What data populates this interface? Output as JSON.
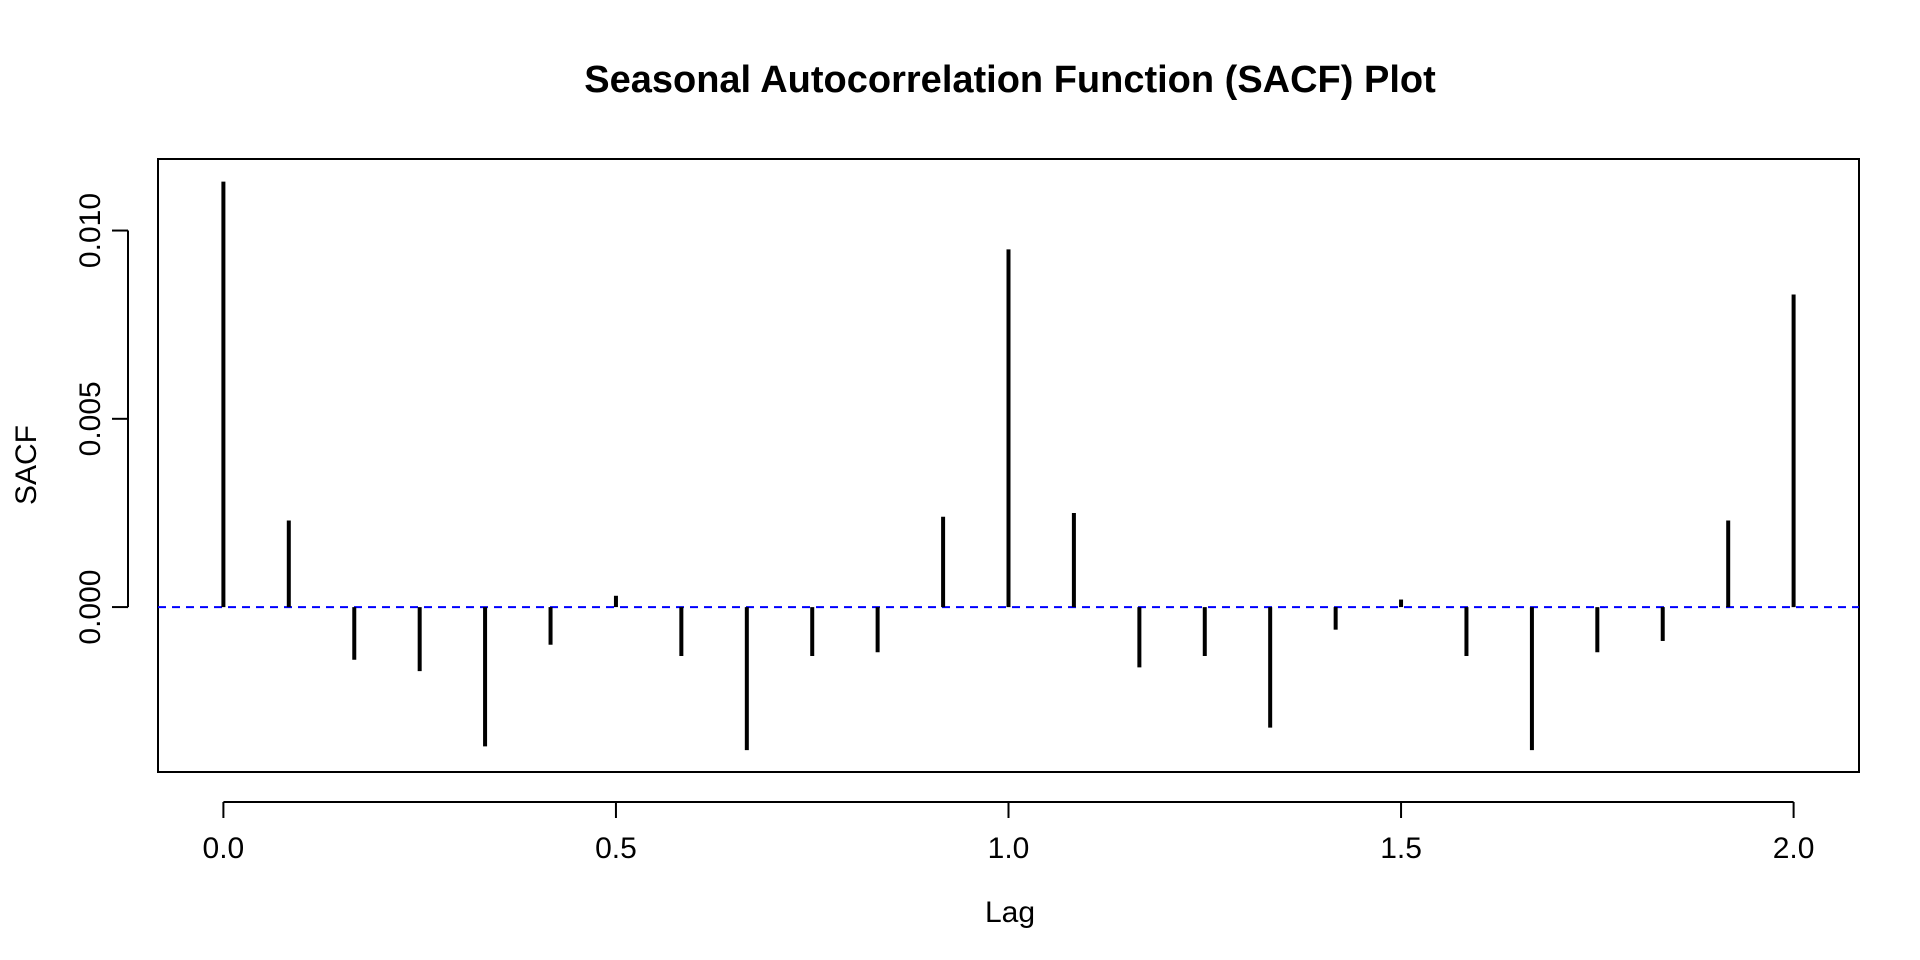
{
  "chart_data": {
    "type": "bar",
    "title": "Seasonal Autocorrelation Function (SACF) Plot",
    "xlabel": "Lag",
    "ylabel": "SACF",
    "xlim": [
      -0.0833,
      2.0833
    ],
    "ylim": [
      -0.00438,
      0.0119
    ],
    "x_ticks": [
      0.0,
      0.5,
      1.0,
      1.5,
      2.0
    ],
    "x_tick_labels": [
      "0.0",
      "0.5",
      "1.0",
      "1.5",
      "2.0"
    ],
    "y_ticks": [
      0.0,
      0.005,
      0.01
    ],
    "y_tick_labels": [
      "0.000",
      "0.005",
      "0.010"
    ],
    "grid": false,
    "reference_line": {
      "y": 0.0,
      "style": "dashed",
      "color": "#0000ff"
    },
    "bar_color": "#000000",
    "series": [
      {
        "x": [
          0.0,
          0.0833,
          0.1667,
          0.25,
          0.3333,
          0.4167,
          0.5,
          0.5833,
          0.6667,
          0.75,
          0.8333,
          0.9167,
          1.0,
          1.0833,
          1.1667,
          1.25,
          1.3333,
          1.4167,
          1.5,
          1.5833,
          1.6667,
          1.75,
          1.8333,
          1.9167,
          2.0
        ],
        "values": [
          0.0113,
          0.0023,
          -0.0014,
          -0.0017,
          -0.0037,
          -0.001,
          0.0003,
          -0.0013,
          -0.0038,
          -0.0013,
          -0.0012,
          0.0024,
          0.0095,
          0.0025,
          -0.0016,
          -0.0013,
          -0.0032,
          -0.0006,
          0.0002,
          -0.0013,
          -0.0038,
          -0.0012,
          -0.0009,
          0.0023,
          0.0083
        ]
      }
    ]
  }
}
